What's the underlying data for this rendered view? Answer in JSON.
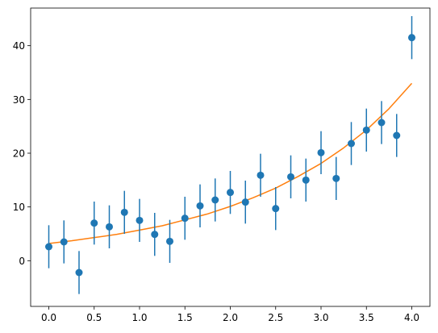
{
  "chart_data": {
    "type": "scatter",
    "title": "",
    "xlabel": "",
    "ylabel": "",
    "xlim": [
      -0.2,
      4.2
    ],
    "ylim": [
      -8.5,
      47
    ],
    "grid": false,
    "legend": "none",
    "xticks": [
      0.0,
      0.5,
      1.0,
      1.5,
      2.0,
      2.5,
      3.0,
      3.5,
      4.0
    ],
    "xtick_labels": [
      "0.0",
      "0.5",
      "1.0",
      "1.5",
      "2.0",
      "2.5",
      "3.0",
      "3.5",
      "4.0"
    ],
    "yticks": [
      0,
      10,
      20,
      30,
      40
    ],
    "ytick_labels": [
      "0",
      "10",
      "20",
      "30",
      "40"
    ],
    "series": [
      {
        "kind": "errorbar",
        "color": "#1f77b4",
        "x": [
          0.0,
          0.1667,
          0.3333,
          0.5,
          0.6667,
          0.8333,
          1.0,
          1.1667,
          1.3333,
          1.5,
          1.6667,
          1.8333,
          2.0,
          2.1667,
          2.3333,
          2.5,
          2.6667,
          2.8333,
          3.0,
          3.1667,
          3.3333,
          3.5,
          3.6667,
          3.8333,
          4.0
        ],
        "y": [
          2.6,
          3.5,
          -2.2,
          7.0,
          6.3,
          9.0,
          7.5,
          4.9,
          3.6,
          7.9,
          10.2,
          11.3,
          12.7,
          10.9,
          15.9,
          9.7,
          15.6,
          15.0,
          20.1,
          15.3,
          21.8,
          24.3,
          25.7,
          23.3,
          41.5
        ],
        "yerr": 4.0
      },
      {
        "kind": "line",
        "color": "#ff7f0e",
        "x": [
          0.0,
          0.25,
          0.5,
          0.75,
          1.0,
          1.25,
          1.5,
          1.75,
          2.0,
          2.25,
          2.5,
          2.75,
          3.0,
          3.25,
          3.5,
          3.75,
          4.0
        ],
        "y": [
          3.2,
          3.7,
          4.3,
          4.9,
          5.7,
          6.5,
          7.6,
          8.7,
          10.1,
          11.7,
          13.5,
          15.7,
          18.1,
          21.0,
          24.3,
          28.3,
          33.0
        ]
      }
    ]
  }
}
